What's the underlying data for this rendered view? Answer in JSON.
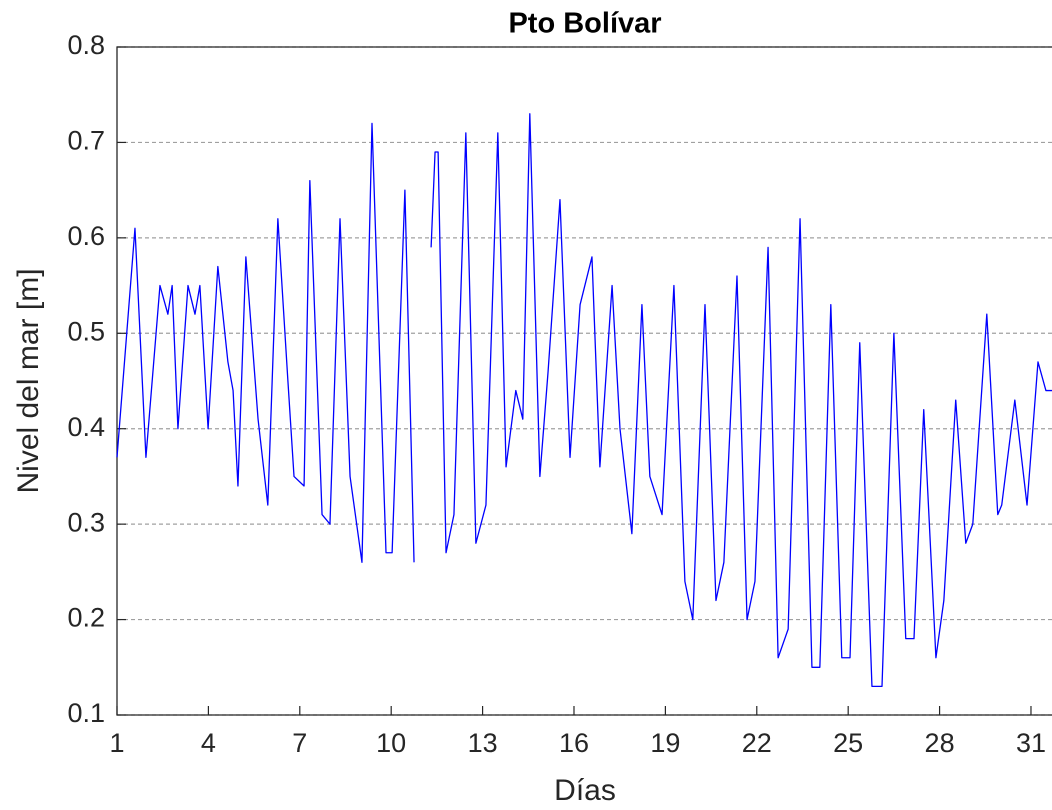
{
  "chart_data": {
    "type": "line",
    "title": "Pto Bolívar",
    "xlabel": "Días",
    "ylabel": "Nivel del mar [m]",
    "x": [
      1.0,
      1.59,
      1.95,
      2.41,
      2.67,
      2.81,
      3.0,
      3.33,
      3.56,
      3.72,
      3.99,
      4.31,
      4.64,
      4.81,
      4.97,
      5.23,
      5.63,
      5.95,
      6.28,
      6.61,
      6.81,
      7.14,
      7.33,
      7.73,
      7.99,
      8.32,
      8.65,
      9.04,
      9.37,
      9.83,
      10.03,
      10.45,
      10.75,
      10.9,
      11.31,
      11.44,
      11.54,
      11.8,
      12.06,
      12.45,
      12.78,
      13.11,
      13.5,
      13.77,
      14.09,
      14.32,
      14.55,
      14.88,
      15.15,
      15.54,
      15.87,
      16.2,
      16.59,
      16.85,
      17.25,
      17.51,
      17.9,
      18.23,
      18.49,
      18.89,
      19.28,
      19.64,
      19.9,
      20.3,
      20.66,
      20.92,
      21.35,
      21.68,
      21.94,
      22.37,
      22.7,
      23.03,
      23.42,
      23.81,
      24.07,
      24.43,
      24.79,
      25.06,
      25.38,
      25.78,
      26.11,
      26.5,
      26.89,
      27.16,
      27.48,
      27.88,
      28.14,
      28.53,
      28.86,
      29.09,
      29.55,
      29.91,
      30.04,
      30.47,
      30.87,
      31.23,
      31.49,
      31.69
    ],
    "values": [
      0.37,
      0.61,
      0.37,
      0.55,
      0.52,
      0.55,
      0.4,
      0.55,
      0.52,
      0.55,
      0.4,
      0.57,
      0.47,
      0.44,
      0.34,
      0.58,
      0.41,
      0.32,
      0.62,
      0.45,
      0.35,
      0.34,
      0.66,
      0.31,
      0.3,
      0.62,
      0.35,
      0.26,
      0.72,
      0.27,
      0.27,
      0.65,
      0.26,
      null,
      0.59,
      0.69,
      0.69,
      0.27,
      0.31,
      0.71,
      0.28,
      0.32,
      0.71,
      0.36,
      0.44,
      0.41,
      0.73,
      0.35,
      0.46,
      0.64,
      0.37,
      0.53,
      0.58,
      0.36,
      0.55,
      0.4,
      0.29,
      0.53,
      0.35,
      0.31,
      0.55,
      0.24,
      0.2,
      0.53,
      0.22,
      0.26,
      0.56,
      0.2,
      0.24,
      0.59,
      0.16,
      0.19,
      0.62,
      0.15,
      0.15,
      0.53,
      0.16,
      0.16,
      0.49,
      0.13,
      0.13,
      0.5,
      0.18,
      0.18,
      0.42,
      0.16,
      0.22,
      0.43,
      0.28,
      0.3,
      0.52,
      0.31,
      0.32,
      0.43,
      0.32,
      0.47,
      0.44,
      0.44
    ],
    "color": "#0000ff",
    "xlim": [
      1,
      31.69
    ],
    "xticks": [
      1,
      4,
      7,
      10,
      13,
      16,
      19,
      22,
      25,
      28,
      31
    ],
    "ylim": [
      0.1,
      0.8
    ],
    "yticks": [
      0.1,
      0.2,
      0.3,
      0.4,
      0.5,
      0.6,
      0.7,
      0.8
    ],
    "grid": true
  }
}
